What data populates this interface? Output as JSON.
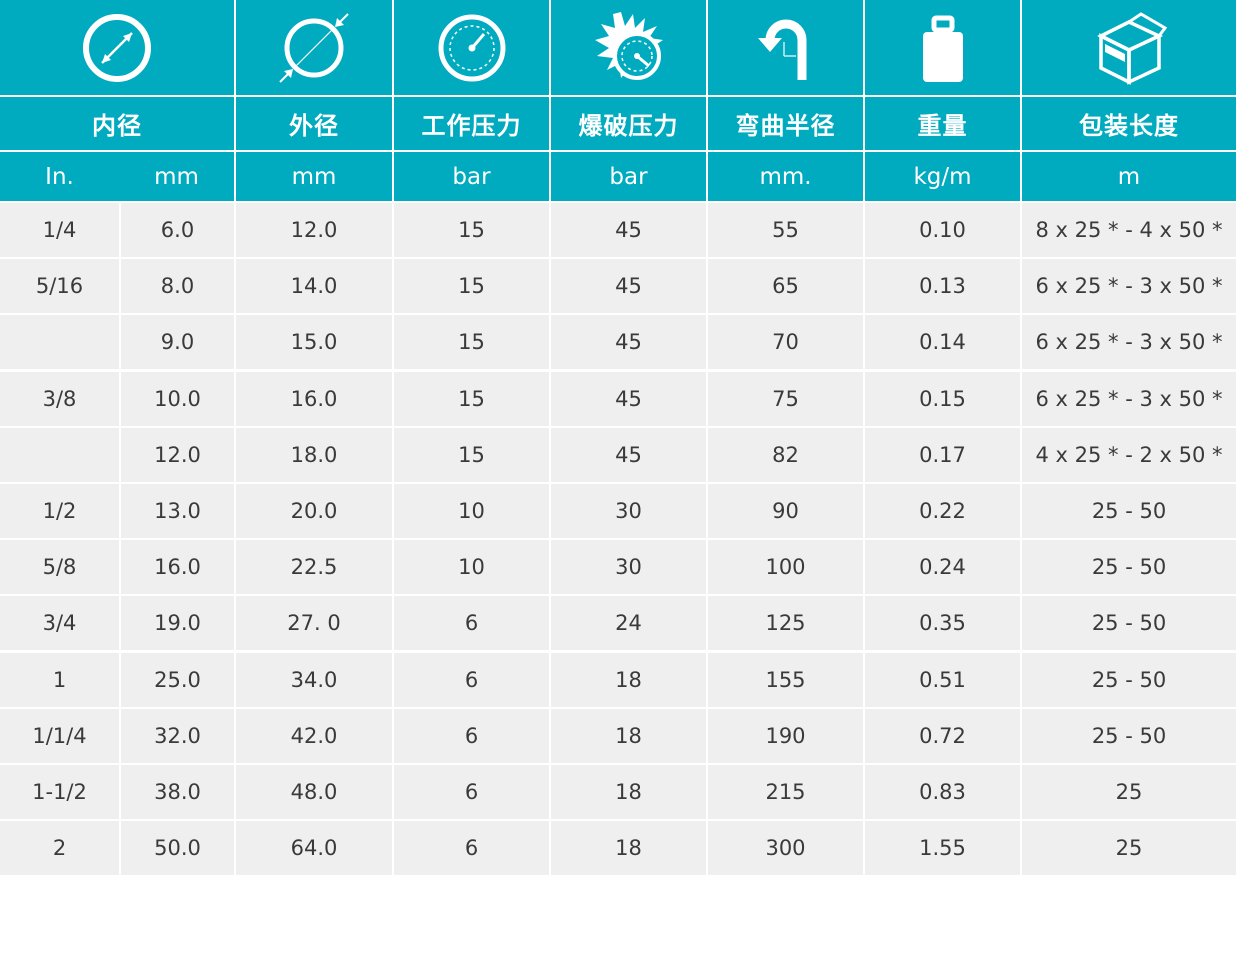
{
  "colors": {
    "header": "#00aabf",
    "row": "#efefef",
    "divider": "#ffffff",
    "text": "#3a3a3a"
  },
  "icons": [
    "inner-diameter-icon",
    "outer-diameter-icon",
    "pressure-gauge-icon",
    "burst-gauge-icon",
    "bend-radius-icon",
    "weight-icon",
    "package-box-icon"
  ],
  "header": {
    "names": [
      "内径",
      "外径",
      "工作压力",
      "爆破压力",
      "弯曲半径",
      "重量",
      "包装长度"
    ],
    "units": [
      "In.",
      "mm",
      "mm",
      "bar",
      "bar",
      "mm.",
      "kg/m",
      "m"
    ]
  },
  "rows": [
    [
      "1/4",
      "6.0",
      "12.0",
      "15",
      "45",
      "55",
      "0.10",
      "8 x 25 * - 4 x 50 *"
    ],
    [
      "5/16",
      "8.0",
      "14.0",
      "15",
      "45",
      "65",
      "0.13",
      "6 x 25 * - 3 x 50 *"
    ],
    [
      "",
      "9.0",
      "15.0",
      "15",
      "45",
      "70",
      "0.14",
      "6 x 25 * - 3 x 50 *"
    ],
    [
      "3/8",
      "10.0",
      "16.0",
      "15",
      "45",
      "75",
      "0.15",
      "6 x 25 * - 3 x 50 *"
    ],
    [
      "",
      "12.0",
      "18.0",
      "15",
      "45",
      "82",
      "0.17",
      "4 x 25 * - 2 x 50 *"
    ],
    [
      "1/2",
      "13.0",
      "20.0",
      "10",
      "30",
      "90",
      "0.22",
      "25 - 50"
    ],
    [
      "5/8",
      "16.0",
      "22.5",
      "10",
      "30",
      "100",
      "0.24",
      "25 - 50"
    ],
    [
      "3/4",
      "19.0",
      "27. 0",
      "6",
      "24",
      "125",
      "0.35",
      "25 - 50"
    ],
    [
      "1",
      "25.0",
      "34.0",
      "6",
      "18",
      "155",
      "0.51",
      "25 - 50"
    ],
    [
      "1/1/4",
      "32.0",
      "42.0",
      "6",
      "18",
      "190",
      "0.72",
      "25 - 50"
    ],
    [
      "1-1/2",
      "38.0",
      "48.0",
      "6",
      "18",
      "215",
      "0.83",
      "25"
    ],
    [
      "2",
      "50.0",
      "64.0",
      "6",
      "18",
      "300",
      "1.55",
      "25"
    ]
  ]
}
